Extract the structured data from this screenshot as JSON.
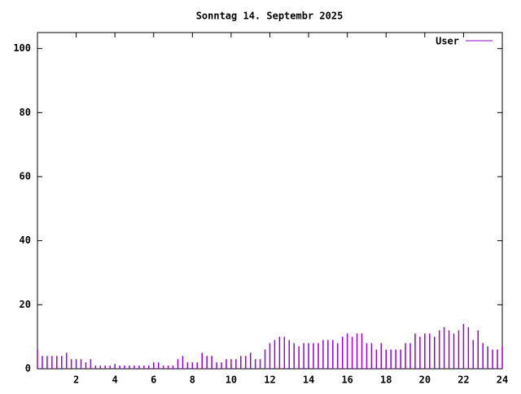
{
  "chart_data": {
    "type": "impulses",
    "title": "Sonntag 14. Septembr 2025",
    "x": [
      0,
      0.25,
      0.5,
      0.75,
      1,
      1.25,
      1.5,
      1.75,
      2,
      2.25,
      2.5,
      2.75,
      3,
      3.25,
      3.5,
      3.75,
      4,
      4.25,
      4.5,
      4.75,
      5,
      5.25,
      5.5,
      5.75,
      6,
      6.25,
      6.5,
      6.75,
      7,
      7.25,
      7.5,
      7.75,
      8,
      8.25,
      8.5,
      8.75,
      9,
      9.25,
      9.5,
      9.75,
      10,
      10.25,
      10.5,
      10.75,
      11,
      11.25,
      11.5,
      11.75,
      12,
      12.25,
      12.5,
      12.75,
      13,
      13.25,
      13.5,
      13.75,
      14,
      14.25,
      14.5,
      14.75,
      15,
      15.25,
      15.5,
      15.75,
      16,
      16.25,
      16.5,
      16.75,
      17,
      17.25,
      17.5,
      17.75,
      18,
      18.25,
      18.5,
      18.75,
      19,
      19.25,
      19.5,
      19.75,
      20,
      20.25,
      20.5,
      20.75,
      21,
      21.25,
      21.5,
      21.75,
      22,
      22.25,
      22.5,
      22.75,
      23,
      23.25,
      23.5,
      23.75,
      24
    ],
    "series": [
      {
        "name": "User",
        "color": "#9400d3",
        "values": [
          6,
          4,
          4,
          4,
          4,
          4,
          5,
          3,
          3,
          3,
          2,
          3,
          1,
          1,
          1,
          1,
          1,
          1,
          1,
          1,
          1,
          1,
          1,
          1,
          2,
          2,
          1,
          1,
          1,
          3,
          4,
          2,
          2,
          2,
          5,
          4,
          4,
          2,
          2,
          3,
          3,
          3,
          4,
          4,
          5,
          3,
          3,
          6,
          8,
          9,
          10,
          10,
          9,
          8,
          7,
          8,
          8,
          8,
          8,
          9,
          9,
          9,
          8,
          10,
          11,
          10,
          11,
          11,
          8,
          8,
          6,
          8,
          6,
          6,
          6,
          6,
          8,
          8,
          11,
          10,
          11,
          11,
          10,
          12,
          13,
          12,
          11,
          12,
          14,
          13,
          9,
          12,
          8,
          7,
          6,
          6,
          7
        ]
      }
    ],
    "xlim": [
      0,
      24
    ],
    "xticks": [
      2,
      4,
      6,
      8,
      10,
      12,
      14,
      16,
      18,
      20,
      22,
      24
    ],
    "ylim": [
      0,
      105
    ],
    "yticks": [
      0,
      20,
      40,
      60,
      80,
      100
    ]
  }
}
